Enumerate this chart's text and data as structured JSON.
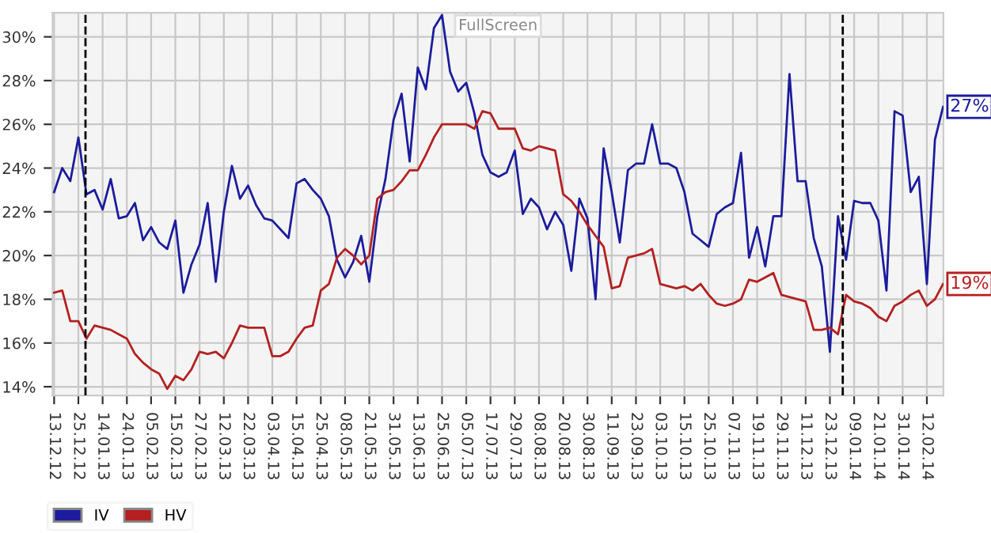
{
  "chart_data": {
    "type": "line",
    "categories": [
      "13.12.12",
      null,
      null,
      "25.12.12",
      null,
      null,
      "14.01.13",
      null,
      null,
      "24.01.13",
      null,
      null,
      "05.02.13",
      null,
      null,
      "15.02.13",
      null,
      null,
      "27.02.13",
      null,
      null,
      "12.03.13",
      null,
      null,
      "22.03.13",
      null,
      null,
      "03.04.13",
      null,
      null,
      "15.04.13",
      null,
      null,
      "25.04.13",
      null,
      null,
      "08.05.13",
      null,
      null,
      "21.05.13",
      null,
      null,
      "31.05.13",
      null,
      null,
      "13.06.13",
      null,
      null,
      "25.06.13",
      null,
      null,
      "05.07.13",
      null,
      null,
      "17.07.13",
      null,
      null,
      "29.07.13",
      null,
      null,
      "08.08.13",
      null,
      null,
      "20.08.13",
      null,
      null,
      "30.08.13",
      null,
      null,
      "11.09.13",
      null,
      null,
      "23.09.13",
      null,
      null,
      "03.10.13",
      null,
      null,
      "15.10.13",
      null,
      null,
      "25.10.13",
      null,
      null,
      "07.11.13",
      null,
      null,
      "19.11.13",
      null,
      null,
      "29.11.13",
      null,
      null,
      "11.12.13",
      null,
      null,
      "23.12.13",
      null,
      null,
      "09.01.14",
      null,
      null,
      "21.01.14",
      null,
      null,
      "31.01.14",
      null,
      null,
      "12.02.14",
      null,
      null
    ],
    "series": [
      {
        "name": "IV",
        "color": "#1c1c9c",
        "values": [
          22.9,
          24.0,
          23.4,
          25.4,
          22.8,
          23.0,
          22.1,
          23.5,
          21.7,
          21.8,
          22.4,
          20.7,
          21.3,
          20.6,
          20.3,
          21.6,
          18.3,
          19.6,
          20.5,
          22.4,
          18.8,
          22.0,
          24.1,
          22.6,
          23.2,
          22.3,
          21.7,
          21.6,
          21.2,
          20.8,
          23.3,
          23.5,
          23.0,
          22.6,
          21.8,
          19.8,
          19.0,
          19.7,
          20.9,
          18.8,
          21.8,
          23.5,
          26.2,
          27.4,
          24.3,
          28.6,
          27.6,
          30.4,
          31.0,
          28.4,
          27.5,
          27.9,
          26.5,
          24.6,
          23.8,
          23.6,
          23.8,
          24.8,
          21.9,
          22.6,
          22.2,
          21.2,
          22.0,
          21.4,
          19.3,
          22.6,
          21.7,
          18.0,
          24.9,
          22.9,
          20.6,
          23.9,
          24.2,
          24.2,
          26.0,
          24.2,
          24.2,
          24.0,
          22.9,
          21.0,
          20.7,
          20.4,
          21.9,
          22.2,
          22.4,
          24.7,
          19.9,
          21.3,
          19.5,
          21.8,
          21.8,
          28.3,
          23.4,
          23.4,
          20.8,
          19.5,
          15.6,
          21.8,
          19.8,
          22.5,
          22.4,
          22.4,
          21.6,
          18.4,
          26.6,
          26.4,
          22.9,
          23.6,
          18.7,
          25.3,
          26.8
        ]
      },
      {
        "name": "HV",
        "color": "#b42020",
        "values": [
          18.3,
          18.4,
          17.0,
          17.0,
          16.2,
          16.8,
          16.7,
          16.6,
          16.4,
          16.2,
          15.5,
          15.1,
          14.8,
          14.6,
          13.9,
          14.5,
          14.3,
          14.8,
          15.6,
          15.5,
          15.6,
          15.3,
          16.0,
          16.8,
          16.7,
          16.7,
          16.7,
          15.4,
          15.4,
          15.6,
          16.2,
          16.7,
          16.8,
          18.4,
          18.7,
          19.9,
          20.3,
          20.0,
          19.6,
          20.0,
          22.6,
          22.9,
          23.0,
          23.4,
          23.9,
          23.9,
          24.6,
          25.4,
          26.0,
          26.0,
          26.0,
          26.0,
          25.8,
          26.6,
          26.5,
          25.8,
          25.8,
          25.8,
          24.9,
          24.8,
          25.0,
          24.9,
          24.8,
          22.8,
          22.5,
          22.0,
          21.4,
          20.9,
          20.4,
          18.5,
          18.6,
          19.9,
          20.0,
          20.1,
          20.3,
          18.7,
          18.6,
          18.5,
          18.6,
          18.4,
          18.7,
          18.2,
          17.8,
          17.7,
          17.8,
          18.0,
          18.9,
          18.8,
          19.0,
          19.2,
          18.2,
          18.1,
          18.0,
          17.9,
          16.6,
          16.6,
          16.7,
          16.4,
          18.2,
          17.9,
          17.8,
          17.6,
          17.2,
          17.0,
          17.7,
          17.9,
          18.2,
          18.4,
          17.7,
          18.0,
          18.7
        ]
      }
    ],
    "ylim": [
      13.6,
      31.1
    ],
    "yticks": [
      {
        "value": 14,
        "label": "14%"
      },
      {
        "value": 16,
        "label": "16%"
      },
      {
        "value": 18,
        "label": "18%"
      },
      {
        "value": 20,
        "label": "20%"
      },
      {
        "value": 22,
        "label": "22%"
      },
      {
        "value": 24,
        "label": "24%"
      },
      {
        "value": 26,
        "label": "26%"
      },
      {
        "value": 28,
        "label": "28%"
      },
      {
        "value": 30,
        "label": "30%"
      }
    ],
    "annotations": [
      "FullScreen",
      {
        "text": "27%",
        "y": 26.8
      },
      {
        "text": "19%",
        "y": 18.7
      }
    ],
    "grid": true,
    "legend": "bottom left",
    "line_style": "solid",
    "marker": "none"
  }
}
